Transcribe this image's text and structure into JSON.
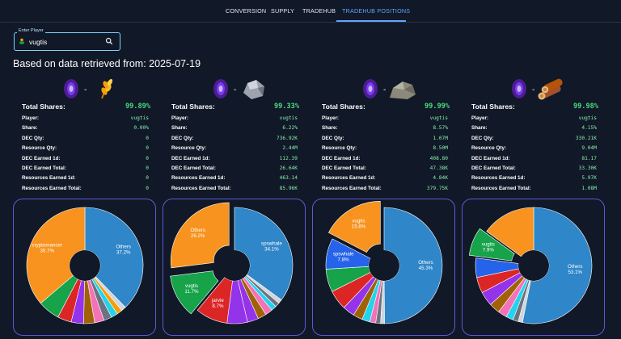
{
  "nav": {
    "items": [
      "CONVERSION",
      "SUPPLY",
      "TRADEHUB",
      "TRADEHUB POSITIONS"
    ],
    "active": "TRADEHUB POSITIONS"
  },
  "search": {
    "label": "Enter Player",
    "value": "vugtis"
  },
  "heading": "Based on data retrieved from: 2025-07-19",
  "cards": [
    {
      "resource_icon": "grain-icon",
      "pair_separator": "-",
      "total_label": "Total Shares:",
      "total_value": "99.89%",
      "rows": [
        {
          "label": "Player:",
          "value": "vugtis"
        },
        {
          "label": "Share:",
          "value": "0.00%"
        },
        {
          "label": "DEC Qty:",
          "value": "0"
        },
        {
          "label": "Resource Qty:",
          "value": "0"
        },
        {
          "label": "DEC Earned 1d:",
          "value": "0"
        },
        {
          "label": "DEC Earned Total:",
          "value": "0"
        },
        {
          "label": "Resources Earned 1d:",
          "value": "0"
        },
        {
          "label": "Resources Earned Total:",
          "value": "0"
        }
      ]
    },
    {
      "resource_icon": "iron-ore-icon",
      "pair_separator": "-",
      "total_label": "Total Shares:",
      "total_value": "99.33%",
      "rows": [
        {
          "label": "Player:",
          "value": "vugtis"
        },
        {
          "label": "Share:",
          "value": "6.22%"
        },
        {
          "label": "DEC Qty:",
          "value": "736.92K"
        },
        {
          "label": "Resource Qty:",
          "value": "2.44M"
        },
        {
          "label": "DEC Earned 1d:",
          "value": "112.39"
        },
        {
          "label": "DEC Earned Total:",
          "value": "26.64K"
        },
        {
          "label": "Resources Earned 1d:",
          "value": "463.14"
        },
        {
          "label": "Resources Earned Total:",
          "value": "85.96K"
        }
      ]
    },
    {
      "resource_icon": "stone-icon",
      "pair_separator": "-",
      "total_label": "Total Shares:",
      "total_value": "99.99%",
      "rows": [
        {
          "label": "Player:",
          "value": "vugtis"
        },
        {
          "label": "Share:",
          "value": "8.57%"
        },
        {
          "label": "DEC Qty:",
          "value": "1.07M"
        },
        {
          "label": "Resource Qty:",
          "value": "8.50M"
        },
        {
          "label": "DEC Earned 1d:",
          "value": "408.80"
        },
        {
          "label": "DEC Earned Total:",
          "value": "47.38K"
        },
        {
          "label": "Resources Earned 1d:",
          "value": "4.84K"
        },
        {
          "label": "Resources Earned Total:",
          "value": "379.75K"
        }
      ]
    },
    {
      "resource_icon": "wood-icon",
      "pair_separator": "-",
      "total_label": "Total Shares:",
      "total_value": "99.98%",
      "rows": [
        {
          "label": "Player:",
          "value": "vugtis"
        },
        {
          "label": "Share:",
          "value": "4.15%"
        },
        {
          "label": "DEC Qty:",
          "value": "330.21K"
        },
        {
          "label": "Resource Qty:",
          "value": "9.04M"
        },
        {
          "label": "DEC Earned 1d:",
          "value": "81.17"
        },
        {
          "label": "DEC Earned Total:",
          "value": "33.30K"
        },
        {
          "label": "Resources Earned 1d:",
          "value": "5.97K"
        },
        {
          "label": "Resources Earned Total:",
          "value": "1.08M"
        }
      ]
    }
  ],
  "chart_data": [
    {
      "type": "pie",
      "title": "",
      "slices": [
        {
          "name": "Others",
          "value": 37.2,
          "label": "Others\n37.2%",
          "color": "#2f86c8"
        },
        {
          "name": "s6",
          "value": 1.3,
          "label": "",
          "color": "#d1d5db"
        },
        {
          "name": "s5",
          "value": 1.5,
          "label": "",
          "color": "#f59e0b"
        },
        {
          "name": "s4",
          "value": 1.8,
          "label": "",
          "color": "#22d3ee"
        },
        {
          "name": "s3",
          "value": 2.2,
          "label": "",
          "color": "#6b7280"
        },
        {
          "name": "s2",
          "value": 2.6,
          "label": "",
          "color": "#f472b6"
        },
        {
          "name": "s1",
          "value": 3.0,
          "label": "",
          "color": "#a16207"
        },
        {
          "name": "s0",
          "value": 3.4,
          "label": "",
          "color": "#9333ea"
        },
        {
          "name": "slice-9",
          "value": 3.8,
          "label": "",
          "color": "#dc2626"
        },
        {
          "name": "slice-8",
          "value": 6.0,
          "label": "",
          "color": "#16a34a"
        },
        {
          "name": "cryptomancer",
          "value": 35.7,
          "label": "cryptomancer\n35.7%",
          "color": "#f7931e"
        }
      ],
      "exploded": []
    },
    {
      "type": "pie",
      "title": "",
      "slices": [
        {
          "name": "spswhale",
          "value": 34.1,
          "label": "spswhale\n34.1%",
          "color": "#2f86c8"
        },
        {
          "name": "s6",
          "value": 1.1,
          "label": "",
          "color": "#d1d5db"
        },
        {
          "name": "s5",
          "value": 1.2,
          "label": "",
          "color": "#6b7280"
        },
        {
          "name": "s4",
          "value": 1.4,
          "label": "",
          "color": "#22d3ee"
        },
        {
          "name": "s3",
          "value": 2.0,
          "label": "",
          "color": "#f472b6"
        },
        {
          "name": "s2",
          "value": 2.3,
          "label": "",
          "color": "#a16207"
        },
        {
          "name": "s1",
          "value": 3.0,
          "label": "",
          "color": "#9333ea"
        },
        {
          "name": "slice-8",
          "value": 5.5,
          "label": "",
          "color": "#9333ea"
        },
        {
          "name": "jarvie",
          "value": 8.7,
          "label": "jarvie\n8.7%",
          "color": "#dc2626"
        },
        {
          "name": "vugtis",
          "value": 11.7,
          "label": "vugtis\n11.7%",
          "color": "#16a34a"
        },
        {
          "name": "Others",
          "value": 26.2,
          "label": "Others\n26.2%",
          "color": "#f7931e"
        }
      ],
      "exploded": [
        "vugtis",
        "Others"
      ]
    },
    {
      "type": "pie",
      "title": "",
      "slices": [
        {
          "name": "Others",
          "value": 45.3,
          "label": "Others\n45.3%",
          "color": "#2f86c8"
        },
        {
          "name": "s9",
          "value": 1.0,
          "label": "",
          "color": "#d1d5db"
        },
        {
          "name": "s8",
          "value": 1.2,
          "label": "",
          "color": "#6b7280"
        },
        {
          "name": "s7",
          "value": 1.5,
          "label": "",
          "color": "#f472b6"
        },
        {
          "name": "s6",
          "value": 2.0,
          "label": "",
          "color": "#22d3ee"
        },
        {
          "name": "s5",
          "value": 2.4,
          "label": "",
          "color": "#a16207"
        },
        {
          "name": "s4",
          "value": 3.0,
          "label": "",
          "color": "#9333ea"
        },
        {
          "name": "slice-a",
          "value": 5.0,
          "label": "",
          "color": "#dc2626"
        },
        {
          "name": "slice-b",
          "value": 5.8,
          "label": "",
          "color": "#16a34a"
        },
        {
          "name": "spswhale",
          "value": 7.8,
          "label": "spswhale\n7.8%",
          "color": "#2563eb"
        },
        {
          "name": "vugtis",
          "value": 15.8,
          "label": "vugtis\n15.8%",
          "color": "#f7931e"
        }
      ],
      "exploded": [
        "vugtis"
      ]
    },
    {
      "type": "pie",
      "title": "",
      "slices": [
        {
          "name": "Others",
          "value": 53.1,
          "label": "Others\n53.1%",
          "color": "#2f86c8"
        },
        {
          "name": "s9",
          "value": 1.2,
          "label": "",
          "color": "#d1d5db"
        },
        {
          "name": "s8",
          "value": 1.5,
          "label": "",
          "color": "#6b7280"
        },
        {
          "name": "s7",
          "value": 2.0,
          "label": "",
          "color": "#22d3ee"
        },
        {
          "name": "s6",
          "value": 2.5,
          "label": "",
          "color": "#f472b6"
        },
        {
          "name": "s5",
          "value": 3.0,
          "label": "",
          "color": "#a16207"
        },
        {
          "name": "slice-6",
          "value": 4.0,
          "label": "",
          "color": "#9333ea"
        },
        {
          "name": "slice-5",
          "value": 4.4,
          "label": "",
          "color": "#dc2626"
        },
        {
          "name": "slice-4",
          "value": 5.4,
          "label": "",
          "color": "#2563eb"
        },
        {
          "name": "vugtis",
          "value": 7.9,
          "label": "vugtis\n7.9%",
          "color": "#16a34a"
        },
        {
          "name": "slice-top",
          "value": 15.0,
          "label": "",
          "color": "#f7931e"
        }
      ],
      "exploded": [
        "vugtis"
      ]
    }
  ]
}
